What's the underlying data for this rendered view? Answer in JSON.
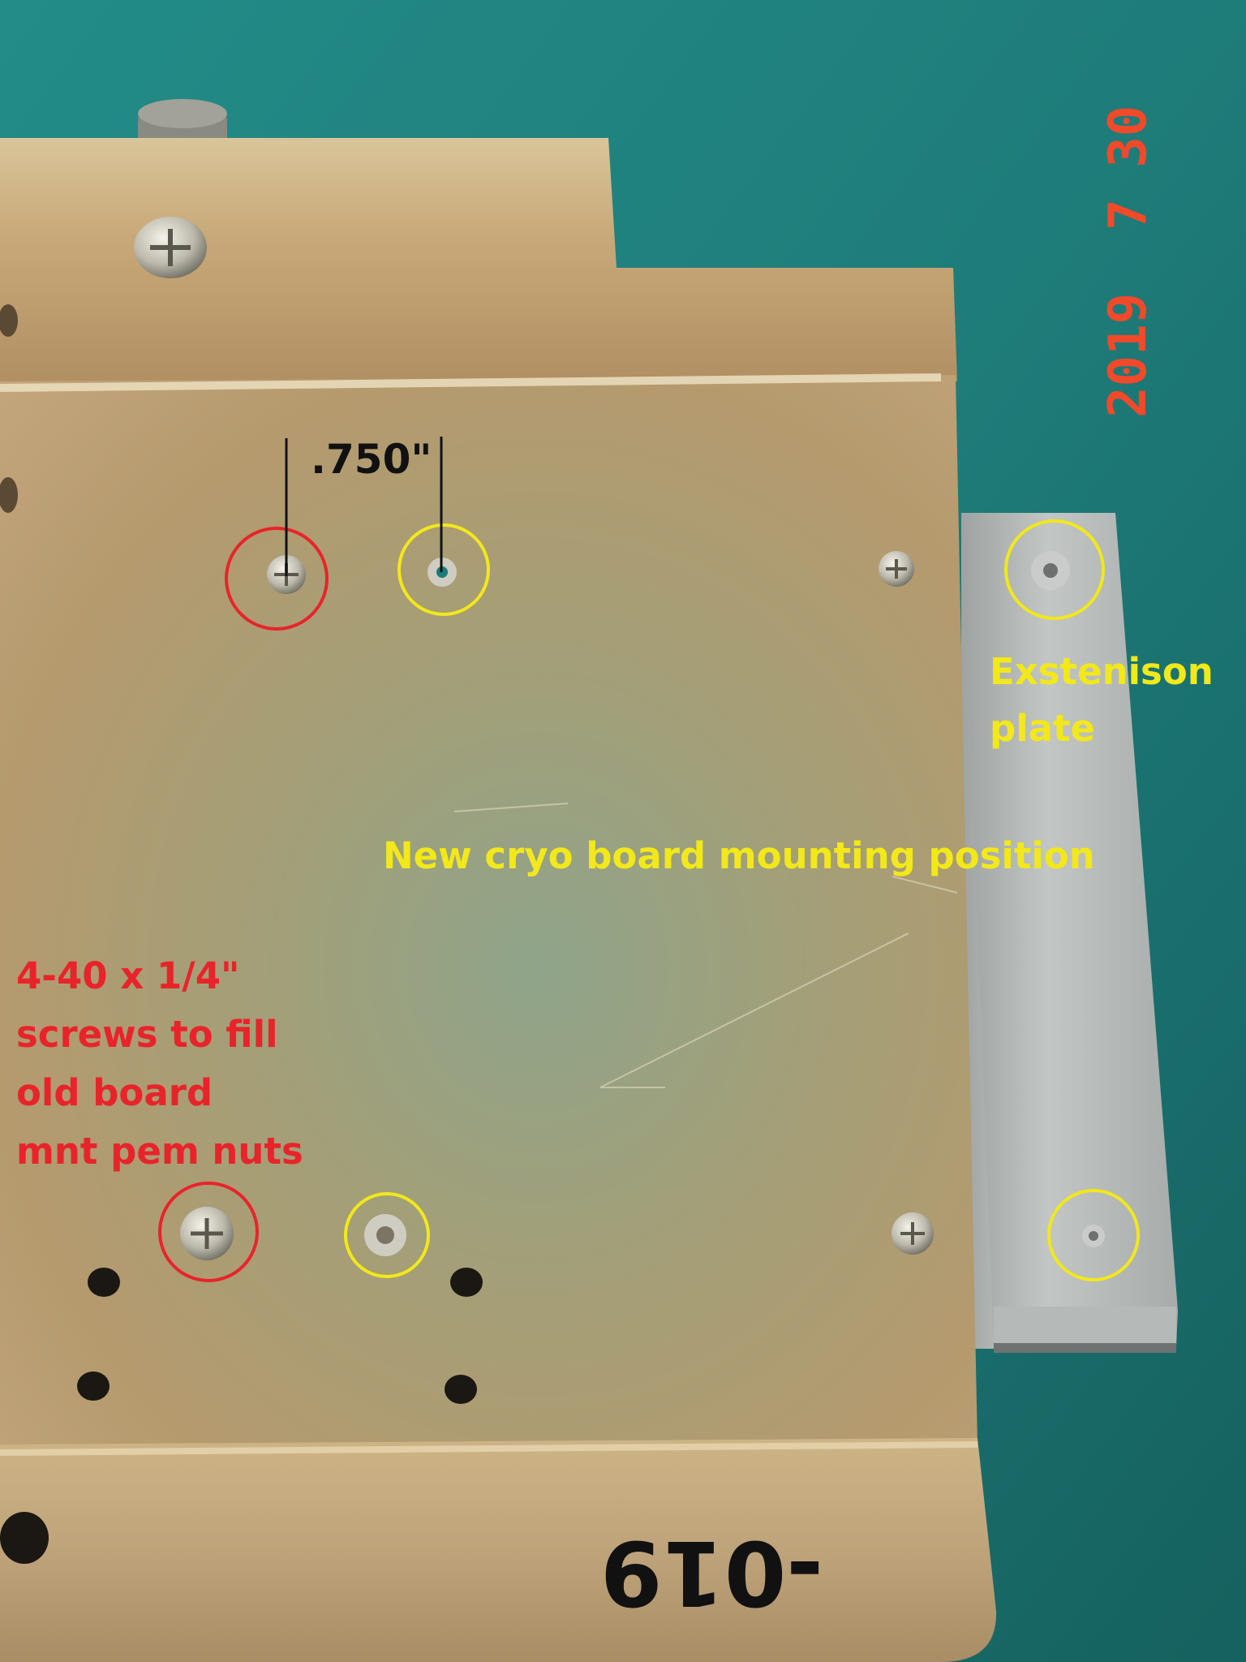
{
  "photo": {
    "date_stamp": "2019  7 30",
    "handwritten_mark": "-019"
  },
  "annotations": {
    "dimension_label": ".750\"",
    "extension_plate_label": [
      "Exstenison",
      "plate"
    ],
    "new_position_label": "New cryo board mounting position",
    "screws_label": [
      "4-40 x 1/4\"",
      "screws to fill",
      "old board",
      "mnt pem nuts"
    ]
  },
  "colors": {
    "background": "#1f7f7c",
    "plate_metal": "#a9a57a",
    "extension_plate": "#b8bcbb",
    "red_annotation": "#e8242a",
    "yellow_annotation": "#f2e81a",
    "date_stamp": "#f04a2a",
    "black_annotation": "#111111"
  }
}
